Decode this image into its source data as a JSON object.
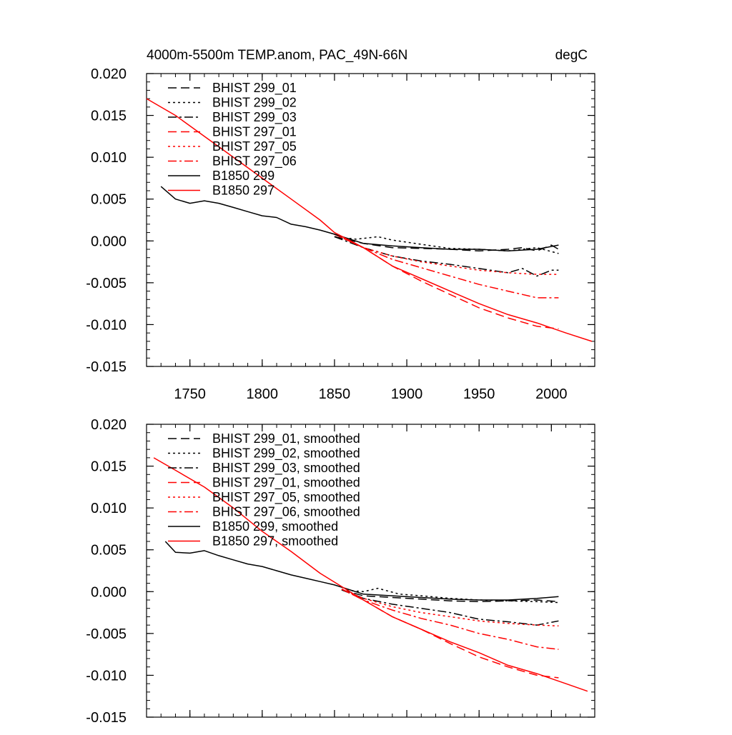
{
  "chart_data": [
    {
      "type": "line",
      "title": "4000m-5500m TEMP.anom, PAC_49N-66N",
      "units": "degC",
      "xlim": [
        1720,
        2030
      ],
      "ylim": [
        -0.015,
        0.02
      ],
      "x_ticks": [
        "1750",
        "1800",
        "1850",
        "1900",
        "1950",
        "2000"
      ],
      "y_ticks": [
        "0.020",
        "0.015",
        "0.010",
        "0.005",
        "0.000",
        "-0.005",
        "-0.010",
        "-0.015"
      ],
      "grid": false,
      "legend_position": "top-left",
      "series": [
        {
          "name": "BHIST 299_01",
          "color": "#000000",
          "style": "dash",
          "x": [
            1850,
            1870,
            1890,
            1910,
            1930,
            1950,
            1970,
            1980,
            1990,
            2000,
            2005
          ],
          "y": [
            0.0005,
            -0.0003,
            -0.0008,
            -0.0009,
            -0.001,
            -0.0012,
            -0.001,
            -0.0008,
            -0.0012,
            -0.0005,
            -0.001
          ]
        },
        {
          "name": "BHIST 299_02",
          "color": "#000000",
          "style": "dot",
          "x": [
            1850,
            1865,
            1880,
            1890,
            1910,
            1930,
            1950,
            1970,
            1990,
            2005
          ],
          "y": [
            0.0005,
            0.0002,
            0.0005,
            0.0001,
            -0.0004,
            -0.0009,
            -0.001,
            -0.0012,
            -0.0008,
            -0.0015
          ]
        },
        {
          "name": "BHIST 299_03",
          "color": "#000000",
          "style": "dashdot",
          "x": [
            1850,
            1870,
            1890,
            1910,
            1930,
            1950,
            1970,
            1980,
            1990,
            2000,
            2005
          ],
          "y": [
            0.0005,
            -0.0008,
            -0.0018,
            -0.0024,
            -0.0028,
            -0.0033,
            -0.0038,
            -0.0033,
            -0.0042,
            -0.0035,
            -0.0035
          ]
        },
        {
          "name": "BHIST 297_01",
          "color": "#ff0000",
          "style": "dash",
          "x": [
            1850,
            1870,
            1890,
            1910,
            1930,
            1950,
            1970,
            1990,
            2005
          ],
          "y": [
            0.0008,
            -0.0008,
            -0.003,
            -0.0048,
            -0.0064,
            -0.008,
            -0.0092,
            -0.0102,
            -0.0105
          ]
        },
        {
          "name": "BHIST 297_05",
          "color": "#ff0000",
          "style": "dot",
          "x": [
            1850,
            1870,
            1890,
            1910,
            1930,
            1950,
            1970,
            1990,
            2005
          ],
          "y": [
            0.0008,
            -0.0008,
            -0.0018,
            -0.0025,
            -0.003,
            -0.0035,
            -0.0038,
            -0.004,
            -0.004
          ]
        },
        {
          "name": "BHIST 297_06",
          "color": "#ff0000",
          "style": "dashdot",
          "x": [
            1850,
            1870,
            1890,
            1910,
            1930,
            1950,
            1970,
            1990,
            2005
          ],
          "y": [
            0.0008,
            -0.0008,
            -0.0022,
            -0.0032,
            -0.0042,
            -0.0052,
            -0.006,
            -0.0068,
            -0.0068
          ]
        },
        {
          "name": "B1850 299",
          "color": "#000000",
          "style": "solid",
          "x": [
            1730,
            1740,
            1750,
            1760,
            1770,
            1780,
            1790,
            1800,
            1810,
            1820,
            1830,
            1840,
            1850,
            1870,
            1890,
            1910,
            1930,
            1950,
            1970,
            1990,
            2005
          ],
          "y": [
            0.0065,
            0.005,
            0.0045,
            0.0048,
            0.0045,
            0.004,
            0.0035,
            0.003,
            0.0028,
            0.002,
            0.0017,
            0.0013,
            0.0008,
            -0.0003,
            -0.0006,
            -0.0008,
            -0.001,
            -0.001,
            -0.0012,
            -0.001,
            -0.0005
          ]
        },
        {
          "name": "B1850 297",
          "color": "#ff0000",
          "style": "solid",
          "x": [
            1720,
            1740,
            1760,
            1780,
            1800,
            1820,
            1840,
            1850,
            1870,
            1890,
            1910,
            1930,
            1950,
            1970,
            1990,
            2010,
            2028
          ],
          "y": [
            0.017,
            0.015,
            0.0125,
            0.01,
            0.0075,
            0.005,
            0.0025,
            0.001,
            -0.0008,
            -0.003,
            -0.0045,
            -0.006,
            -0.0075,
            -0.0088,
            -0.0098,
            -0.011,
            -0.012
          ]
        }
      ]
    },
    {
      "type": "line",
      "xlim": [
        1720,
        2030
      ],
      "ylim": [
        -0.015,
        0.02
      ],
      "y_ticks": [
        "0.020",
        "0.015",
        "0.010",
        "0.005",
        "0.000",
        "-0.005",
        "-0.010",
        "-0.015"
      ],
      "grid": false,
      "legend_position": "top-left",
      "series": [
        {
          "name": "BHIST 299_01, smoothed",
          "color": "#000000",
          "style": "dash",
          "x": [
            1855,
            1870,
            1890,
            1910,
            1930,
            1950,
            1970,
            1990,
            2005
          ],
          "y": [
            0.0002,
            -0.0005,
            -0.0007,
            -0.0009,
            -0.0011,
            -0.0012,
            -0.0011,
            -0.001,
            -0.0012
          ]
        },
        {
          "name": "BHIST 299_02, smoothed",
          "color": "#000000",
          "style": "dot",
          "x": [
            1855,
            1870,
            1880,
            1895,
            1910,
            1930,
            1950,
            1970,
            1990,
            2005
          ],
          "y": [
            0.0002,
            0.0,
            0.0004,
            -0.0003,
            -0.0005,
            -0.0008,
            -0.001,
            -0.0011,
            -0.0012,
            -0.0013
          ]
        },
        {
          "name": "BHIST 299_03, smoothed",
          "color": "#000000",
          "style": "dashdot",
          "x": [
            1855,
            1870,
            1890,
            1910,
            1930,
            1950,
            1970,
            1990,
            2005
          ],
          "y": [
            0.0002,
            -0.0008,
            -0.0015,
            -0.002,
            -0.0025,
            -0.0033,
            -0.0036,
            -0.004,
            -0.0035
          ]
        },
        {
          "name": "BHIST 297_01, smoothed",
          "color": "#ff0000",
          "style": "dash",
          "x": [
            1855,
            1870,
            1890,
            1910,
            1930,
            1950,
            1970,
            1990,
            2005
          ],
          "y": [
            0.0003,
            -0.001,
            -0.003,
            -0.0045,
            -0.0062,
            -0.0078,
            -0.009,
            -0.01,
            -0.0103
          ]
        },
        {
          "name": "BHIST 297_05, smoothed",
          "color": "#ff0000",
          "style": "dot",
          "x": [
            1855,
            1870,
            1890,
            1910,
            1930,
            1950,
            1970,
            1990,
            2005
          ],
          "y": [
            0.0003,
            -0.0008,
            -0.0018,
            -0.0025,
            -0.003,
            -0.0035,
            -0.0038,
            -0.004,
            -0.0041
          ]
        },
        {
          "name": "BHIST 297_06, smoothed",
          "color": "#ff0000",
          "style": "dashdot",
          "x": [
            1855,
            1870,
            1890,
            1910,
            1930,
            1950,
            1970,
            1990,
            2005
          ],
          "y": [
            0.0003,
            -0.001,
            -0.0022,
            -0.0032,
            -0.004,
            -0.005,
            -0.0057,
            -0.0066,
            -0.0069
          ]
        },
        {
          "name": "B1850 299, smoothed",
          "color": "#000000",
          "style": "solid",
          "x": [
            1733,
            1740,
            1750,
            1760,
            1770,
            1780,
            1790,
            1800,
            1810,
            1820,
            1830,
            1840,
            1850,
            1870,
            1890,
            1910,
            1930,
            1950,
            1970,
            1990,
            2005
          ],
          "y": [
            0.006,
            0.0047,
            0.0046,
            0.0049,
            0.0043,
            0.0038,
            0.0033,
            0.003,
            0.0025,
            0.002,
            0.0016,
            0.0012,
            0.0008,
            -0.0003,
            -0.0005,
            -0.0007,
            -0.0009,
            -0.001,
            -0.001,
            -0.0008,
            -0.0006
          ]
        },
        {
          "name": "B1850 297, smoothed",
          "color": "#ff0000",
          "style": "solid",
          "x": [
            1725,
            1740,
            1760,
            1780,
            1800,
            1820,
            1840,
            1855,
            1870,
            1890,
            1910,
            1930,
            1950,
            1970,
            1990,
            2010,
            2025
          ],
          "y": [
            0.016,
            0.0145,
            0.0125,
            0.01,
            0.0072,
            0.0048,
            0.0022,
            0.0006,
            -0.001,
            -0.003,
            -0.0045,
            -0.006,
            -0.0073,
            -0.0088,
            -0.0098,
            -0.011,
            -0.0119
          ]
        }
      ]
    }
  ]
}
